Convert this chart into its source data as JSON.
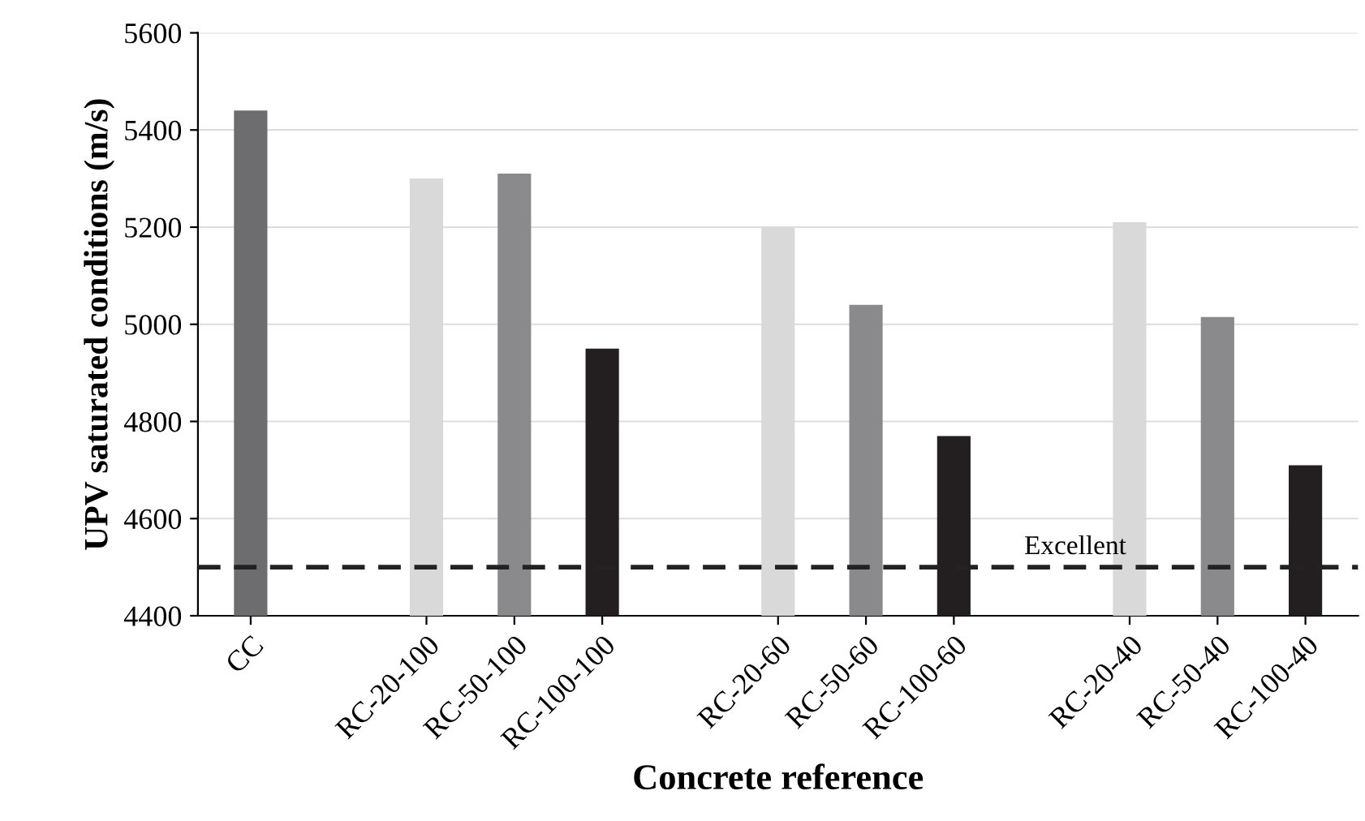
{
  "chart_data": {
    "type": "bar",
    "xlabel": "Concrete reference",
    "ylabel": "UPV saturated conditions (m/s)",
    "categories": [
      "CC",
      null,
      "RC-20-100",
      "RC-50-100",
      "RC-100-100",
      null,
      "RC-20-60",
      "RC-50-60",
      "RC-100-60",
      null,
      "RC-20-40",
      "RC-50-40",
      "RC-100-40"
    ],
    "values": [
      5440,
      null,
      5300,
      5310,
      4950,
      null,
      5200,
      5040,
      4770,
      null,
      5210,
      5015,
      4710
    ],
    "colors": [
      "#6d6d6f",
      null,
      "#d9d9d9",
      "#8a8a8c",
      "#231f20",
      null,
      "#d9d9d9",
      "#8a8a8c",
      "#231f20",
      null,
      "#d9d9d9",
      "#8a8a8c",
      "#231f20"
    ],
    "ylim": [
      4400,
      5600
    ],
    "yticks": [
      4400,
      4600,
      4800,
      5000,
      5200,
      5400,
      5600
    ],
    "grid": "y",
    "ref_lines": [
      {
        "axis": "y",
        "value": 4500,
        "label": "Excellent",
        "color": "#222222",
        "line_style": "dashed"
      }
    ]
  }
}
